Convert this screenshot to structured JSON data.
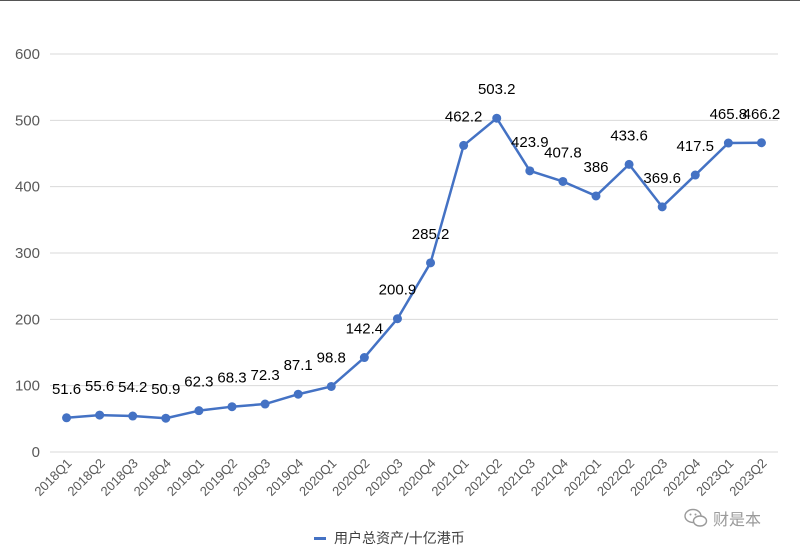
{
  "chart_data": {
    "type": "line",
    "categories": [
      "2018Q1",
      "2018Q2",
      "2018Q3",
      "2018Q4",
      "2019Q1",
      "2019Q2",
      "2019Q3",
      "2019Q4",
      "2020Q1",
      "2020Q2",
      "2020Q3",
      "2020Q4",
      "2021Q1",
      "2021Q2",
      "2021Q3",
      "2021Q4",
      "2022Q1",
      "2022Q2",
      "2022Q3",
      "2022Q4",
      "2023Q1",
      "2023Q2"
    ],
    "series": [
      {
        "name": "用户总资产/十亿港币",
        "values": [
          51.6,
          55.6,
          54.2,
          50.9,
          62.3,
          68.3,
          72.3,
          87.1,
          98.8,
          142.4,
          200.9,
          285.2,
          462.2,
          503.2,
          423.9,
          407.8,
          386,
          433.6,
          369.6,
          417.5,
          465.8,
          466.2
        ],
        "data_labels": [
          "51.6",
          "55.6",
          "54.2",
          "50.9",
          "62.3",
          "68.3",
          "72.3",
          "87.1",
          "98.8",
          "142.4",
          "200.9",
          "285.2",
          "462.2",
          "503.2",
          "423.9",
          "407.8",
          "386",
          "433.6",
          "369.6",
          "417.5",
          "465.8",
          "466.2"
        ],
        "color": "#4472c4"
      }
    ],
    "ylim": [
      0,
      600
    ],
    "yticks": [
      "0",
      "100",
      "200",
      "300",
      "400",
      "500",
      "600"
    ],
    "grid": true,
    "legend_position": "bottom",
    "xlabel": "",
    "ylabel": "",
    "title": ""
  },
  "watermark": {
    "text": "财是本",
    "icon": "wechat-icon"
  }
}
